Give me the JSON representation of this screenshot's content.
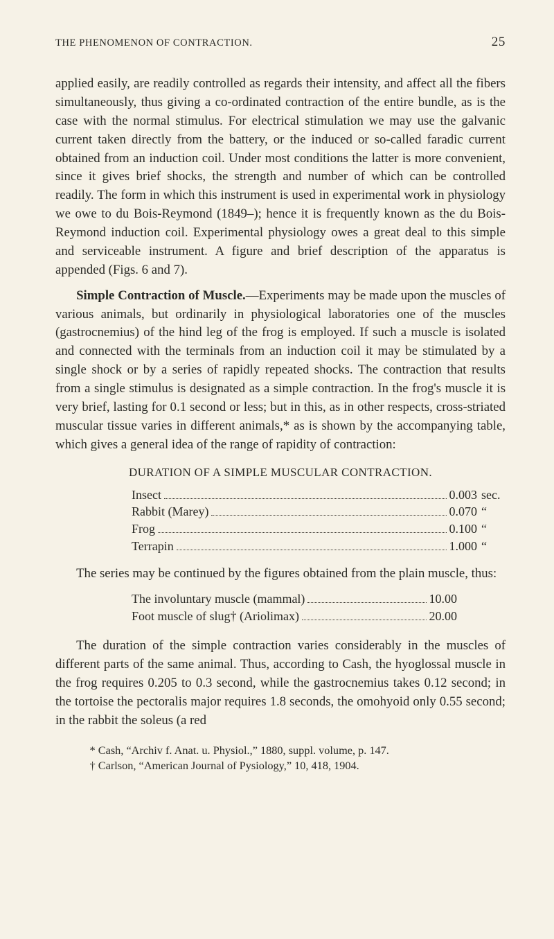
{
  "header": {
    "running_head": "THE PHENOMENON OF CONTRACTION.",
    "page_number": "25"
  },
  "paragraphs": {
    "p1": "applied easily, are readily controlled as regards their intensity, and affect all the fibers simultaneously, thus giving a co-ordinated contraction of the entire bundle, as is the case with the normal stimulus. For electrical stimulation we may use the galvanic current taken directly from the battery, or the induced or so-called faradic current obtained from an induction coil. Under most conditions the latter is more convenient, since it gives brief shocks, the strength and number of which can be controlled readily. The form in which this instrument is used in experimental work in physiology we owe to du Bois-Reymond (1849–); hence it is frequently known as the du Bois-Reymond induction coil. Experimental physiology owes a great deal to this simple and serviceable instrument. A figure and brief description of the apparatus is appended (Figs. 6 and 7).",
    "p2_head": "Simple Contraction of Muscle.",
    "p2_body": "—Experiments may be made upon the muscles of various animals, but ordinarily in physiological laboratories one of the muscles (gastrocnemius) of the hind leg of the frog is employed. If such a muscle is isolated and connected with the terminals from an induction coil it may be stimulated by a single shock or by a series of rapidly repeated shocks. The contraction that results from a single stimulus is designated as a simple contraction. In the frog's muscle it is very brief, lasting for 0.1 second or less; but in this, as in other respects, cross-striated muscular tissue varies in different animals,* as is shown by the accompanying table, which gives a general idea of the range of rapidity of contraction:",
    "p3": "The series may be continued by the figures obtained from the plain muscle, thus:",
    "p4": "The duration of the simple contraction varies considerably in the muscles of different parts of the same animal. Thus, according to Cash, the hyoglossal muscle in the frog requires 0.205 to 0.3 second, while the gastrocnemius takes 0.12 second; in the tortoise the pectoralis major requires 1.8 seconds, the omohyoid only 0.55 second; in the rabbit the soleus (a red"
  },
  "table1": {
    "title": "DURATION OF A SIMPLE MUSCULAR CONTRACTION.",
    "rows": [
      {
        "label": "Insect",
        "value": "0.003",
        "unit": "sec."
      },
      {
        "label": "Rabbit (Marey)",
        "value": "0.070",
        "unit": "“"
      },
      {
        "label": "Frog",
        "value": "0.100",
        "unit": "“"
      },
      {
        "label": "Terrapin",
        "value": "1.000",
        "unit": "“"
      }
    ]
  },
  "table2": {
    "rows": [
      {
        "label": "The involuntary muscle (mammal)",
        "value": "10.00"
      },
      {
        "label": "Foot muscle of slug† (Ariolimax)",
        "value": "20.00"
      }
    ]
  },
  "footnotes": {
    "f1": "* Cash, “Archiv f. Anat. u. Physiol.,” 1880, suppl. volume, p. 147.",
    "f2": "† Carlson, “American Journal of Pysiology,” 10, 418, 1904."
  }
}
